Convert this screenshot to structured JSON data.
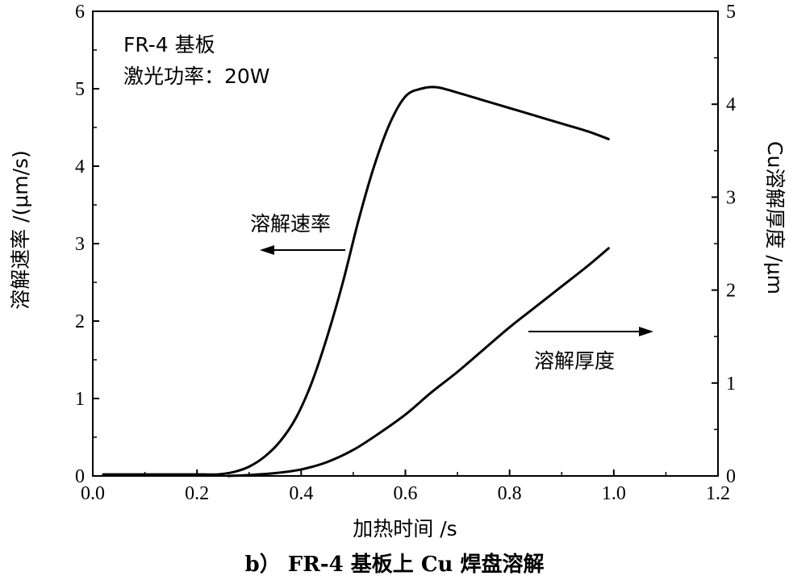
{
  "chart_data": {
    "type": "line",
    "caption": "b） FR-4 基板上 Cu 焊盘溶解",
    "xlabel": "加热时间 /s",
    "ylabel_left": "溶解速率 /(μm/s)",
    "ylabel_right": "Cu溶解厚度 /μm",
    "xlim": [
      0.0,
      1.2
    ],
    "ylim_left": [
      0,
      6
    ],
    "ylim_right": [
      0,
      5
    ],
    "x_ticks": [
      "0.0",
      "0.2",
      "0.4",
      "0.6",
      "0.8",
      "1.0",
      "1.2"
    ],
    "y_ticks_left": [
      "0",
      "1",
      "2",
      "3",
      "4",
      "5",
      "6"
    ],
    "y_ticks_right": [
      "0",
      "1",
      "2",
      "3",
      "4",
      "5"
    ],
    "annotations": {
      "substrate": "FR-4 基板",
      "laser_power": "激光功率：20W",
      "rate_label": "溶解速率",
      "thickness_label": "溶解厚度"
    },
    "series": [
      {
        "axis": "left",
        "x": [
          0.02,
          0.1,
          0.2,
          0.24,
          0.27,
          0.3,
          0.33,
          0.36,
          0.39,
          0.42,
          0.45,
          0.48,
          0.51,
          0.54,
          0.57,
          0.6,
          0.63,
          0.66,
          0.7,
          0.75,
          0.8,
          0.85,
          0.9,
          0.95,
          0.99
        ],
        "y": [
          0.02,
          0.02,
          0.02,
          0.02,
          0.05,
          0.12,
          0.25,
          0.45,
          0.75,
          1.2,
          1.8,
          2.5,
          3.3,
          4.0,
          4.55,
          4.9,
          5.0,
          5.02,
          4.95,
          4.85,
          4.75,
          4.65,
          4.55,
          4.45,
          4.35
        ]
      },
      {
        "axis": "right",
        "x": [
          0.26,
          0.3,
          0.35,
          0.4,
          0.45,
          0.5,
          0.55,
          0.6,
          0.65,
          0.7,
          0.75,
          0.8,
          0.85,
          0.9,
          0.95,
          0.99
        ],
        "y": [
          0.0,
          0.01,
          0.03,
          0.07,
          0.15,
          0.28,
          0.46,
          0.66,
          0.9,
          1.12,
          1.36,
          1.6,
          1.82,
          2.04,
          2.26,
          2.45
        ]
      }
    ]
  }
}
